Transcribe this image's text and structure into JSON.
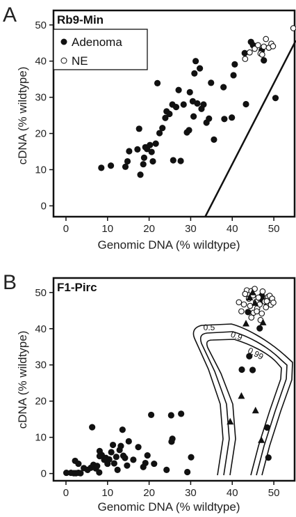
{
  "chart_data": [
    {
      "panel": "A",
      "title": "Rb9-Min",
      "type": "scatter",
      "xlabel": "Genomic DNA (% wildtype)",
      "ylabel": "cDNA (% wildtype)",
      "xlim": [
        -3,
        55
      ],
      "ylim": [
        -3,
        54
      ],
      "xticks": [
        "0",
        "10",
        "20",
        "30",
        "40",
        "50"
      ],
      "yticks": [
        "0",
        "10",
        "20",
        "30",
        "40",
        "50"
      ],
      "legend": {
        "position": "top-left",
        "entries": [
          "Adenoma",
          "NE"
        ]
      },
      "series": [
        {
          "name": "Adenoma",
          "marker": "filled-circle",
          "points": [
            [
              8.5,
              10.5
            ],
            [
              10.8,
              11.1
            ],
            [
              14.3,
              10.8
            ],
            [
              14.8,
              12.3
            ],
            [
              15.2,
              15.1
            ],
            [
              17.2,
              15.6
            ],
            [
              17.6,
              21.3
            ],
            [
              17.9,
              8.6
            ],
            [
              18.6,
              11.5
            ],
            [
              18.8,
              13.3
            ],
            [
              19.1,
              16.2
            ],
            [
              19.5,
              15.7
            ],
            [
              20.2,
              16.8
            ],
            [
              20.6,
              14.9
            ],
            [
              20.9,
              12.3
            ],
            [
              21.6,
              17.2
            ],
            [
              22.0,
              33.9
            ],
            [
              22.5,
              20.1
            ],
            [
              23.2,
              21.5
            ],
            [
              23.9,
              24.3
            ],
            [
              24.2,
              26.1
            ],
            [
              24.9,
              25.4
            ],
            [
              25.6,
              28.0
            ],
            [
              25.8,
              12.6
            ],
            [
              26.5,
              27.3
            ],
            [
              27.1,
              32.0
            ],
            [
              27.6,
              12.4
            ],
            [
              28.3,
              28.0
            ],
            [
              29.1,
              20.3
            ],
            [
              29.6,
              20.9
            ],
            [
              29.8,
              31.4
            ],
            [
              30.5,
              28.9
            ],
            [
              30.7,
              24.7
            ],
            [
              30.9,
              36.6
            ],
            [
              31.2,
              40.0
            ],
            [
              31.6,
              28.3
            ],
            [
              32.2,
              38.0
            ],
            [
              32.6,
              26.8
            ],
            [
              33.1,
              28.0
            ],
            [
              33.8,
              23.0
            ],
            [
              34.4,
              24.1
            ],
            [
              34.9,
              34.0
            ],
            [
              35.6,
              18.3
            ],
            [
              37.9,
              32.8
            ],
            [
              38.1,
              24.0
            ],
            [
              39.9,
              24.4
            ],
            [
              40.3,
              36.1
            ],
            [
              40.6,
              39.1
            ],
            [
              43.0,
              42.2
            ],
            [
              43.3,
              28.1
            ],
            [
              44.5,
              45.3
            ],
            [
              45.0,
              44.4
            ],
            [
              47.6,
              40.2
            ],
            [
              47.1,
              43.0
            ],
            [
              50.4,
              29.8
            ]
          ]
        },
        {
          "name": "NE",
          "marker": "open-circle",
          "points": [
            [
              43.1,
              40.6
            ],
            [
              44.2,
              42.4
            ],
            [
              45.4,
              43.4
            ],
            [
              46.2,
              44.4
            ],
            [
              46.8,
              42.1
            ],
            [
              47.2,
              41.8
            ],
            [
              47.6,
              44.0
            ],
            [
              48.1,
              46.1
            ],
            [
              48.8,
              43.7
            ],
            [
              49.4,
              44.8
            ],
            [
              49.8,
              44.1
            ],
            [
              54.7,
              49.1
            ]
          ]
        }
      ],
      "threshold_line": {
        "from": [
          33.5,
          -3
        ],
        "to": [
          55.3,
          45.7
        ]
      }
    },
    {
      "panel": "B",
      "title": "F1-Pirc",
      "type": "scatter",
      "xlabel": "Genomic DNA (% wildtype)",
      "ylabel": "cDNA (% wildtype)",
      "xlim": [
        -3,
        55
      ],
      "ylim": [
        -2,
        54
      ],
      "xticks": [
        "0",
        "10",
        "20",
        "30",
        "40",
        "50"
      ],
      "yticks": [
        "0",
        "10",
        "20",
        "30",
        "40",
        "50"
      ],
      "series": [
        {
          "marker": "filled-circle",
          "points": [
            [
              0.1,
              0.2
            ],
            [
              1.2,
              0.2
            ],
            [
              1.9,
              0.1
            ],
            [
              2.4,
              0.1
            ],
            [
              3.0,
              0.2
            ],
            [
              3.5,
              0.1
            ],
            [
              2.2,
              3.5
            ],
            [
              3.0,
              2.7
            ],
            [
              4.3,
              1.5
            ],
            [
              5.2,
              1.0
            ],
            [
              6.0,
              1.6
            ],
            [
              6.6,
              2.4
            ],
            [
              7.2,
              1.4
            ],
            [
              7.5,
              2.1
            ],
            [
              8.0,
              0.3
            ],
            [
              8.1,
              4.8
            ],
            [
              6.3,
              12.8
            ],
            [
              8.1,
              6.2
            ],
            [
              8.6,
              5.1
            ],
            [
              9.2,
              3.8
            ],
            [
              9.6,
              4.3
            ],
            [
              10.0,
              2.7
            ],
            [
              10.4,
              3.9
            ],
            [
              10.9,
              5.9
            ],
            [
              11.3,
              7.9
            ],
            [
              11.6,
              2.8
            ],
            [
              12.1,
              4.6
            ],
            [
              12.4,
              1.0
            ],
            [
              12.9,
              6.5
            ],
            [
              13.2,
              7.6
            ],
            [
              13.6,
              12.1
            ],
            [
              13.8,
              4.9
            ],
            [
              14.2,
              4.3
            ],
            [
              14.7,
              2.2
            ],
            [
              15.1,
              8.9
            ],
            [
              16.2,
              3.8
            ],
            [
              17.4,
              7.3
            ],
            [
              18.6,
              1.8
            ],
            [
              19.1,
              2.9
            ],
            [
              19.6,
              5.0
            ],
            [
              20.5,
              16.2
            ],
            [
              21.2,
              2.7
            ],
            [
              24.2,
              1.0
            ],
            [
              25.3,
              16.1
            ],
            [
              25.4,
              8.8
            ],
            [
              25.6,
              9.6
            ],
            [
              27.7,
              16.5
            ],
            [
              29.2,
              0.4
            ],
            [
              30.1,
              4.5
            ],
            [
              42.3,
              28.7
            ],
            [
              43.8,
              44.6
            ],
            [
              44.1,
              32.4
            ],
            [
              44.9,
              28.6
            ],
            [
              46.6,
              40.1
            ],
            [
              47.1,
              49.1
            ],
            [
              47.2,
              48.0
            ],
            [
              48.4,
              12.7
            ],
            [
              48.7,
              4.4
            ]
          ]
        },
        {
          "marker": "open-circle",
          "points": [
            [
              41.6,
              47.3
            ],
            [
              42.2,
              44.8
            ],
            [
              42.8,
              46.7
            ],
            [
              43.5,
              50.6
            ],
            [
              44.0,
              48.3
            ],
            [
              44.3,
              46.3
            ],
            [
              44.6,
              43.1
            ],
            [
              45.0,
              49.2
            ],
            [
              45.1,
              44.4
            ],
            [
              45.7,
              47.4
            ],
            [
              46.0,
              45.6
            ],
            [
              46.3,
              48.6
            ],
            [
              46.6,
              46.7
            ],
            [
              47.1,
              44.2
            ],
            [
              47.3,
              50.3
            ],
            [
              47.8,
              47.5
            ],
            [
              48.1,
              45.9
            ],
            [
              48.6,
              48.8
            ],
            [
              49.0,
              49.1
            ],
            [
              49.3,
              46.6
            ],
            [
              49.6,
              48.3
            ],
            [
              49.9,
              47.2
            ],
            [
              44.6,
              50.4
            ],
            [
              45.9,
              44.8
            ],
            [
              46.8,
              42.4
            ],
            [
              48.3,
              47.6
            ],
            [
              43.1,
              49.6
            ],
            [
              45.4,
              51.0
            ]
          ]
        },
        {
          "marker": "filled-triangle",
          "points": [
            [
              39.5,
              14.3
            ],
            [
              42.2,
              21.4
            ],
            [
              43.3,
              41.4
            ],
            [
              44.2,
              48.6
            ],
            [
              44.9,
              50.0
            ],
            [
              45.5,
              47.1
            ],
            [
              45.6,
              17.4
            ],
            [
              47.0,
              9.2
            ],
            [
              47.4,
              41.7
            ]
          ]
        }
      ],
      "contours": [
        "0.5",
        "0.9",
        "0.99"
      ]
    }
  ],
  "figure": {
    "panel_labels": [
      "A",
      "B"
    ]
  },
  "colors": {
    "marker": "#111111",
    "axes": "#111111",
    "background": "#ffffff"
  }
}
